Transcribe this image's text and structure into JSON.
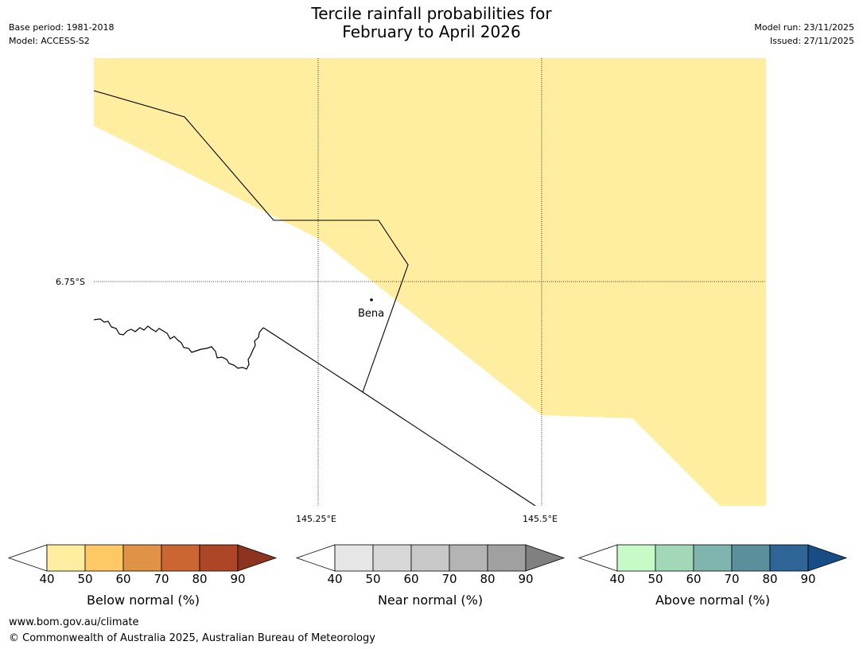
{
  "header": {
    "title_line1": "Tercile rainfall probabilities for",
    "title_line2": "February to April 2026",
    "base_period": "Base period: 1981-2018",
    "model": "Model: ACCESS-S2",
    "model_run": "Model run: 23/11/2025",
    "issued": "Issued: 27/11/2025"
  },
  "map": {
    "lat_label": "6.75°S",
    "lon_labels": [
      "145.25°E",
      "145.5°E"
    ],
    "place_label": "Bena",
    "fill_color": "#ffeda0"
  },
  "legends": [
    {
      "name": "below",
      "label": "Below normal (%)",
      "ticks": [
        "40",
        "50",
        "60",
        "70",
        "80",
        "90"
      ],
      "colors": [
        "#ffeda0",
        "#fec965",
        "#e09346",
        "#cb6532",
        "#ad4626"
      ],
      "extend_color": "#8c3420"
    },
    {
      "name": "near",
      "label": "Near normal (%)",
      "ticks": [
        "40",
        "50",
        "60",
        "70",
        "80",
        "90"
      ],
      "colors": [
        "#e6e6e6",
        "#d7d7d7",
        "#c8c8c8",
        "#b4b4b4",
        "#a0a0a0"
      ],
      "extend_color": "#808080"
    },
    {
      "name": "above",
      "label": "Above normal (%)",
      "ticks": [
        "40",
        "50",
        "60",
        "70",
        "80",
        "90"
      ],
      "colors": [
        "#c8fac8",
        "#a2d8b8",
        "#7fb5ae",
        "#5a8f9c",
        "#2e6496"
      ],
      "extend_color": "#184c84"
    }
  ],
  "footer": {
    "website": "www.bom.gov.au/climate",
    "copyright": "© Commonwealth of Australia 2025, Australian Bureau of Meteorology"
  }
}
